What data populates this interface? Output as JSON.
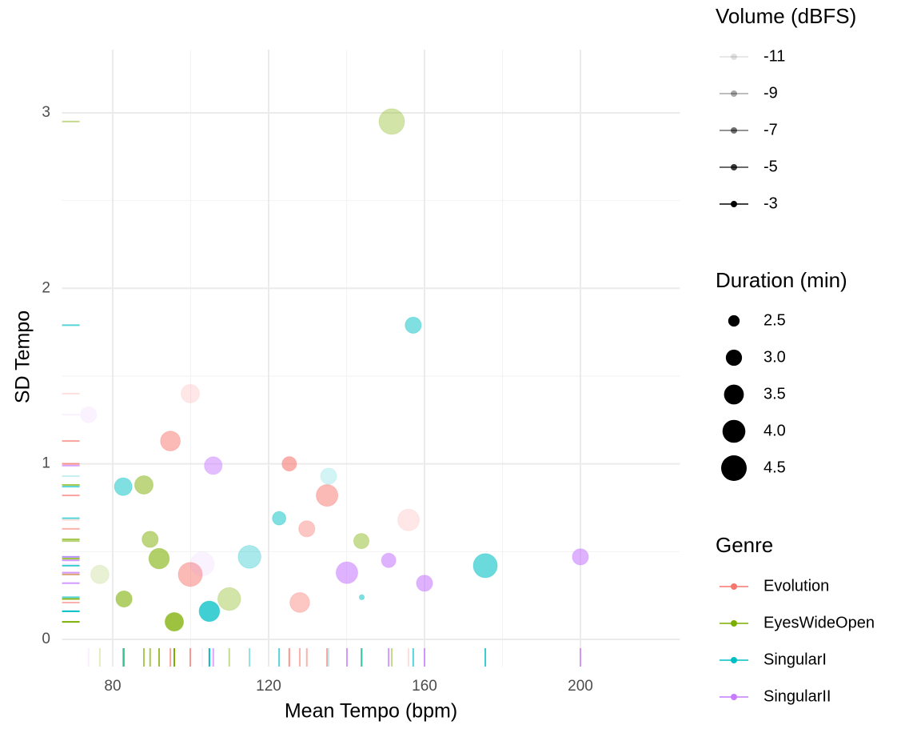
{
  "chart_data": {
    "type": "scatter",
    "x_label": "Mean Tempo (bpm)",
    "y_label": "SD Tempo",
    "xlim": [
      67,
      225.5
    ],
    "ylim": [
      -0.155,
      3.36
    ],
    "xticks": [
      80,
      120,
      160,
      200
    ],
    "yticks": [
      0,
      1,
      2,
      3
    ],
    "grid": true,
    "rug": true,
    "alpha_legend": {
      "title": "Volume (dBFS)",
      "values": [
        -11,
        -9,
        -7,
        -5,
        -3
      ]
    },
    "size_legend": {
      "title": "Duration (min)",
      "values": [
        2.5,
        {
          "value": 3,
          "label": "3.0"
        },
        3.5,
        {
          "value": 4,
          "label": "4.0"
        },
        4.5
      ]
    },
    "color_legend": {
      "title": "Genre"
    },
    "series": [
      {
        "name": "Evolution",
        "color": "#F8766D",
        "x": [
          99.9,
          94.8,
          125.3,
          135.0,
          129.8,
          155.9,
          99.9,
          128.0
        ],
        "y": [
          1.4,
          1.13,
          1.0,
          0.82,
          0.63,
          0.68,
          0.37,
          0.21
        ],
        "size": [
          3.3,
          3.5,
          2.8,
          3.8,
          3.0,
          3.8,
          4.2,
          3.5
        ],
        "volume": [
          -10,
          -6,
          -5,
          -6,
          -7,
          -10,
          -6,
          -7
        ]
      },
      {
        "name": "EyesWideOpen",
        "color": "#7CAE00",
        "x": [
          151.6,
          88.0,
          89.6,
          91.9,
          76.7,
          82.9,
          95.8,
          109.9,
          143.8
        ],
        "y": [
          2.95,
          0.88,
          0.57,
          0.46,
          0.37,
          0.23,
          0.1,
          0.23,
          0.56
        ],
        "size": [
          4.5,
          3.3,
          3.0,
          3.6,
          3.3,
          3.0,
          3.3,
          4.0,
          2.9
        ],
        "volume": [
          -8,
          -6,
          -6,
          -5,
          -10,
          -5,
          -3,
          -8,
          -7
        ]
      },
      {
        "name": "SingularI",
        "color": "#00BFC4",
        "x": [
          157.1,
          82.7,
          135.4,
          122.7,
          115.1,
          175.6,
          104.8,
          143.9
        ],
        "y": [
          1.79,
          0.87,
          0.93,
          0.69,
          0.47,
          0.42,
          0.16,
          0.24
        ],
        "size": [
          3.0,
          3.2,
          3.0,
          2.7,
          4.0,
          4.2,
          3.6,
          2.1
        ],
        "volume": [
          -6,
          -6,
          -10,
          -6,
          -8,
          -5,
          -3,
          -6
        ]
      },
      {
        "name": "SingularII",
        "color": "#C77CFF",
        "x": [
          73.8,
          105.8,
          103.0,
          140.1,
          150.8,
          160.0,
          200.0
        ],
        "y": [
          1.28,
          0.99,
          0.43,
          0.38,
          0.45,
          0.32,
          0.47
        ],
        "size": [
          3.0,
          3.2,
          4.2,
          3.8,
          2.8,
          3.0,
          3.0
        ],
        "volume": [
          -11,
          -6,
          -11,
          -5,
          -5,
          -5,
          -5
        ]
      }
    ]
  }
}
